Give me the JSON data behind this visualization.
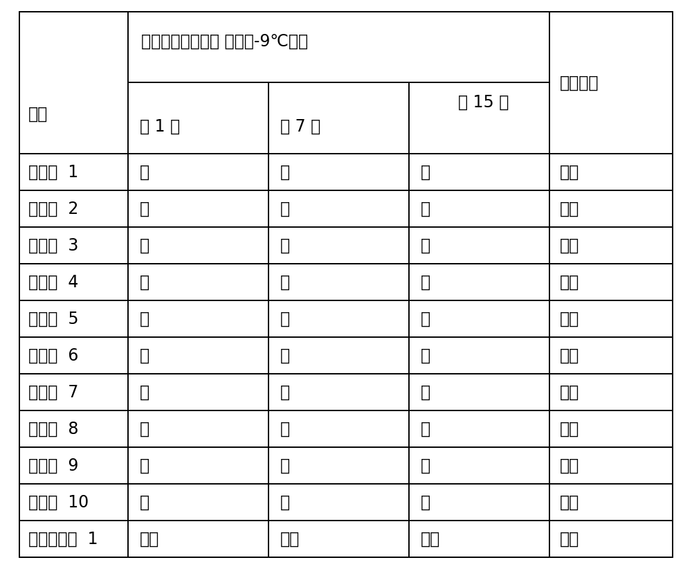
{
  "title_row1": "观察沉淠的存在， 同时在-9℃存储",
  "col_headers": [
    "第 1 天",
    "第 7 天",
    "第 15 天"
  ],
  "col4_header": "蚀刻性能",
  "row_header": "项目",
  "rows": [
    [
      "实施例  1",
      "无",
      "无",
      "无",
      "良好"
    ],
    [
      "实施例  2",
      "无",
      "无",
      "无",
      "良好"
    ],
    [
      "实施例  3",
      "无",
      "无",
      "无",
      "良好"
    ],
    [
      "实施例  4",
      "无",
      "无",
      "无",
      "良好"
    ],
    [
      "实施例  5",
      "无",
      "无",
      "无",
      "良好"
    ],
    [
      "实施例  6",
      "无",
      "无",
      "无",
      "良好"
    ],
    [
      "实施例  7",
      "无",
      "无",
      "无",
      "良好"
    ],
    [
      "实施例  8",
      "无",
      "无",
      "无",
      "良好"
    ],
    [
      "实施例  9",
      "无",
      "无",
      "无",
      "良好"
    ],
    [
      "实施例  10",
      "无",
      "无",
      "无",
      "良好"
    ],
    [
      "比较实施例  1",
      "出现",
      "增加",
      "增加",
      "良好"
    ]
  ],
  "background_color": "#ffffff",
  "line_color": "#000000",
  "text_color": "#000000",
  "font_size": 17,
  "figwidth": 10.0,
  "figheight": 8.22,
  "dpi": 100
}
